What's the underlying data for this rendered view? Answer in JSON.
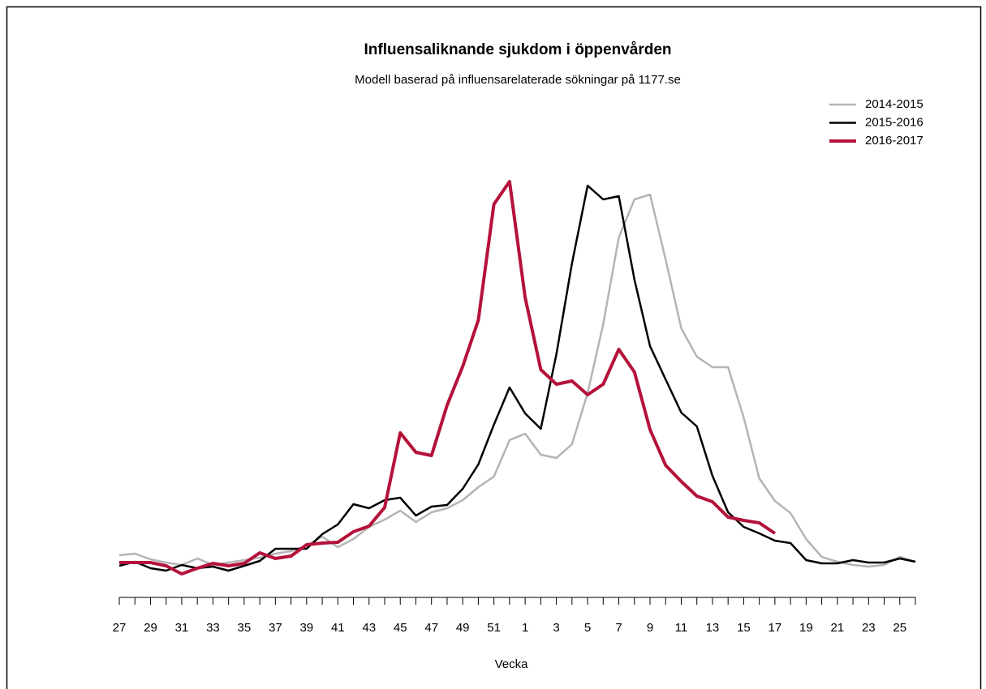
{
  "chart_data": {
    "type": "line",
    "title": "Influensaliknande sjukdom i öppenvården",
    "subtitle": "Modell baserad på influensarelaterade sökningar på 1177.se",
    "x_label": "Vecka",
    "categories": [
      "27",
      null,
      "29",
      null,
      "31",
      null,
      "33",
      null,
      "35",
      null,
      "37",
      null,
      "39",
      null,
      "41",
      null,
      "43",
      null,
      "45",
      null,
      "47",
      null,
      "49",
      null,
      "51",
      null,
      "1",
      null,
      "3",
      null,
      "5",
      null,
      "7",
      null,
      "9",
      null,
      "11",
      null,
      "13",
      null,
      "15",
      null,
      "17",
      null,
      "19",
      null,
      "21",
      null,
      "23",
      null,
      "25",
      null
    ],
    "ylim": [
      0,
      105
    ],
    "legend": "top-right",
    "series": [
      {
        "name": "2014-2015",
        "color": "#b4b4b4",
        "values": [
          9,
          9.4,
          8,
          7.2,
          6.6,
          8.2,
          6.6,
          7.2,
          7.8,
          8.4,
          9.4,
          10,
          11.4,
          13.6,
          11,
          13,
          16,
          17.8,
          20,
          17.2,
          19.6,
          20.6,
          22.6,
          25.8,
          28.4,
          37.4,
          39,
          33.8,
          33,
          36.4,
          49,
          66,
          87.4,
          96.8,
          98,
          82,
          65,
          58,
          55.4,
          55.4,
          43,
          28,
          22.4,
          19.4,
          13,
          8.6,
          7.4,
          6.6,
          6.2,
          6.6,
          8.6,
          7.4
        ]
      },
      {
        "name": "2015-2016",
        "color": "#000000",
        "values": [
          6.4,
          7.4,
          5.8,
          5.2,
          6.6,
          5.8,
          6.2,
          5.2,
          6.4,
          7.6,
          10.6,
          10.6,
          10.6,
          14.2,
          16.6,
          21.6,
          20.6,
          22.6,
          23.2,
          18.8,
          21,
          21.4,
          25.4,
          31.4,
          41.2,
          50.4,
          44,
          40.2,
          58.6,
          81,
          100.2,
          96.8,
          97.6,
          77,
          60.6,
          52.4,
          44.2,
          40.8,
          28.6,
          19.6,
          16,
          14.4,
          12.6,
          12,
          7.8,
          7,
          7,
          7.8,
          7.2,
          7.2,
          8.2,
          7.4
        ]
      },
      {
        "name": "2016-2017",
        "color": "#b5123a",
        "values": [
          7.2,
          7.2,
          7.2,
          6.4,
          4.4,
          5.8,
          7,
          6.4,
          7,
          9.6,
          8.2,
          8.8,
          11.6,
          12,
          12.2,
          14.8,
          16.2,
          20.8,
          39.2,
          34.4,
          33.6,
          46,
          55.6,
          67,
          95.6,
          101.2,
          72.6,
          54.8,
          51.2,
          52,
          48.6,
          51.2,
          59.8,
          54.2,
          40,
          31.2,
          27.2,
          23.6,
          22.2,
          18.4,
          17.6,
          17,
          14.4,
          null,
          null,
          null,
          null,
          null,
          null,
          null,
          null,
          null
        ]
      }
    ]
  }
}
